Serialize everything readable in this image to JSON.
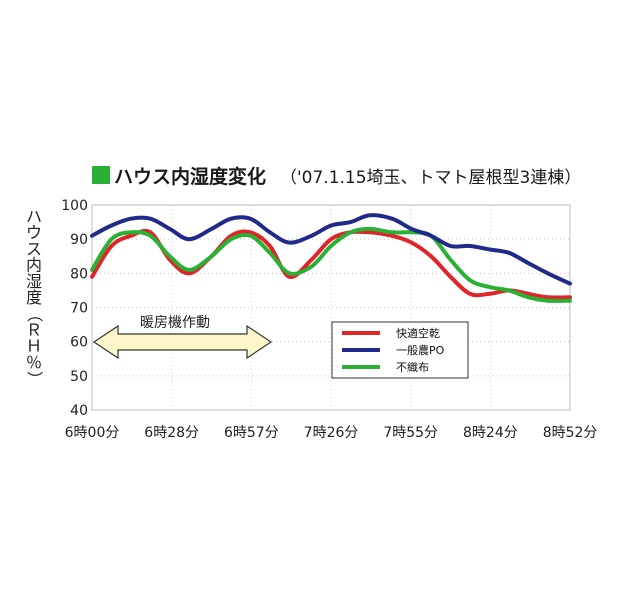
{
  "chart_data": {
    "type": "line",
    "title": "ハウス内湿度変化",
    "subtitle": "（'07.1.15埼玉、トマト屋根型3連棟）",
    "ylabel": "ハウス内湿度（ＲＨ％）",
    "ylim": [
      40,
      100
    ],
    "yticks": [
      "100",
      "90",
      "80",
      "70",
      "60",
      "50",
      "40"
    ],
    "x_ticks": [
      "6時00分",
      "6時28分",
      "6時57分",
      "7時26分",
      "7時55分",
      "8時24分",
      "8時52分"
    ],
    "x_minutes": [
      0,
      172
    ],
    "grid": "dotted",
    "legend_position": "inside-bottom-right",
    "annotation": "暖房機作動",
    "series": [
      {
        "name": "快適空乾",
        "color": "#e0242a",
        "x": [
          0,
          7,
          14,
          21,
          28,
          35,
          43,
          50,
          57,
          64,
          71,
          79,
          86,
          93,
          100,
          108,
          115,
          122,
          129,
          136,
          143,
          150,
          157,
          164,
          172
        ],
        "y": [
          79,
          88,
          91,
          92,
          84,
          80,
          85,
          91,
          92,
          88,
          79,
          84,
          90,
          92,
          92,
          91,
          89,
          85,
          79,
          74,
          74,
          75,
          74,
          73,
          73
        ]
      },
      {
        "name": "一般農PO",
        "color": "#1f2a8a",
        "x": [
          0,
          7,
          14,
          21,
          28,
          35,
          43,
          50,
          57,
          64,
          71,
          79,
          86,
          93,
          100,
          108,
          115,
          122,
          129,
          136,
          143,
          150,
          157,
          164,
          172
        ],
        "y": [
          91,
          94,
          96,
          96,
          93,
          90,
          93,
          96,
          96,
          92,
          89,
          91,
          94,
          95,
          97,
          96,
          93,
          91,
          88,
          88,
          87,
          86,
          83,
          80,
          77
        ]
      },
      {
        "name": "不織布",
        "color": "#2bb036",
        "x": [
          0,
          7,
          14,
          21,
          28,
          35,
          43,
          50,
          57,
          64,
          71,
          79,
          86,
          93,
          100,
          108,
          115,
          122,
          129,
          136,
          143,
          150,
          157,
          164,
          172
        ],
        "y": [
          81,
          90,
          92,
          91,
          85,
          81,
          85,
          90,
          91,
          86,
          80,
          82,
          88,
          92,
          93,
          92,
          92,
          91,
          84,
          78,
          76,
          75,
          73,
          72,
          72
        ]
      }
    ]
  }
}
